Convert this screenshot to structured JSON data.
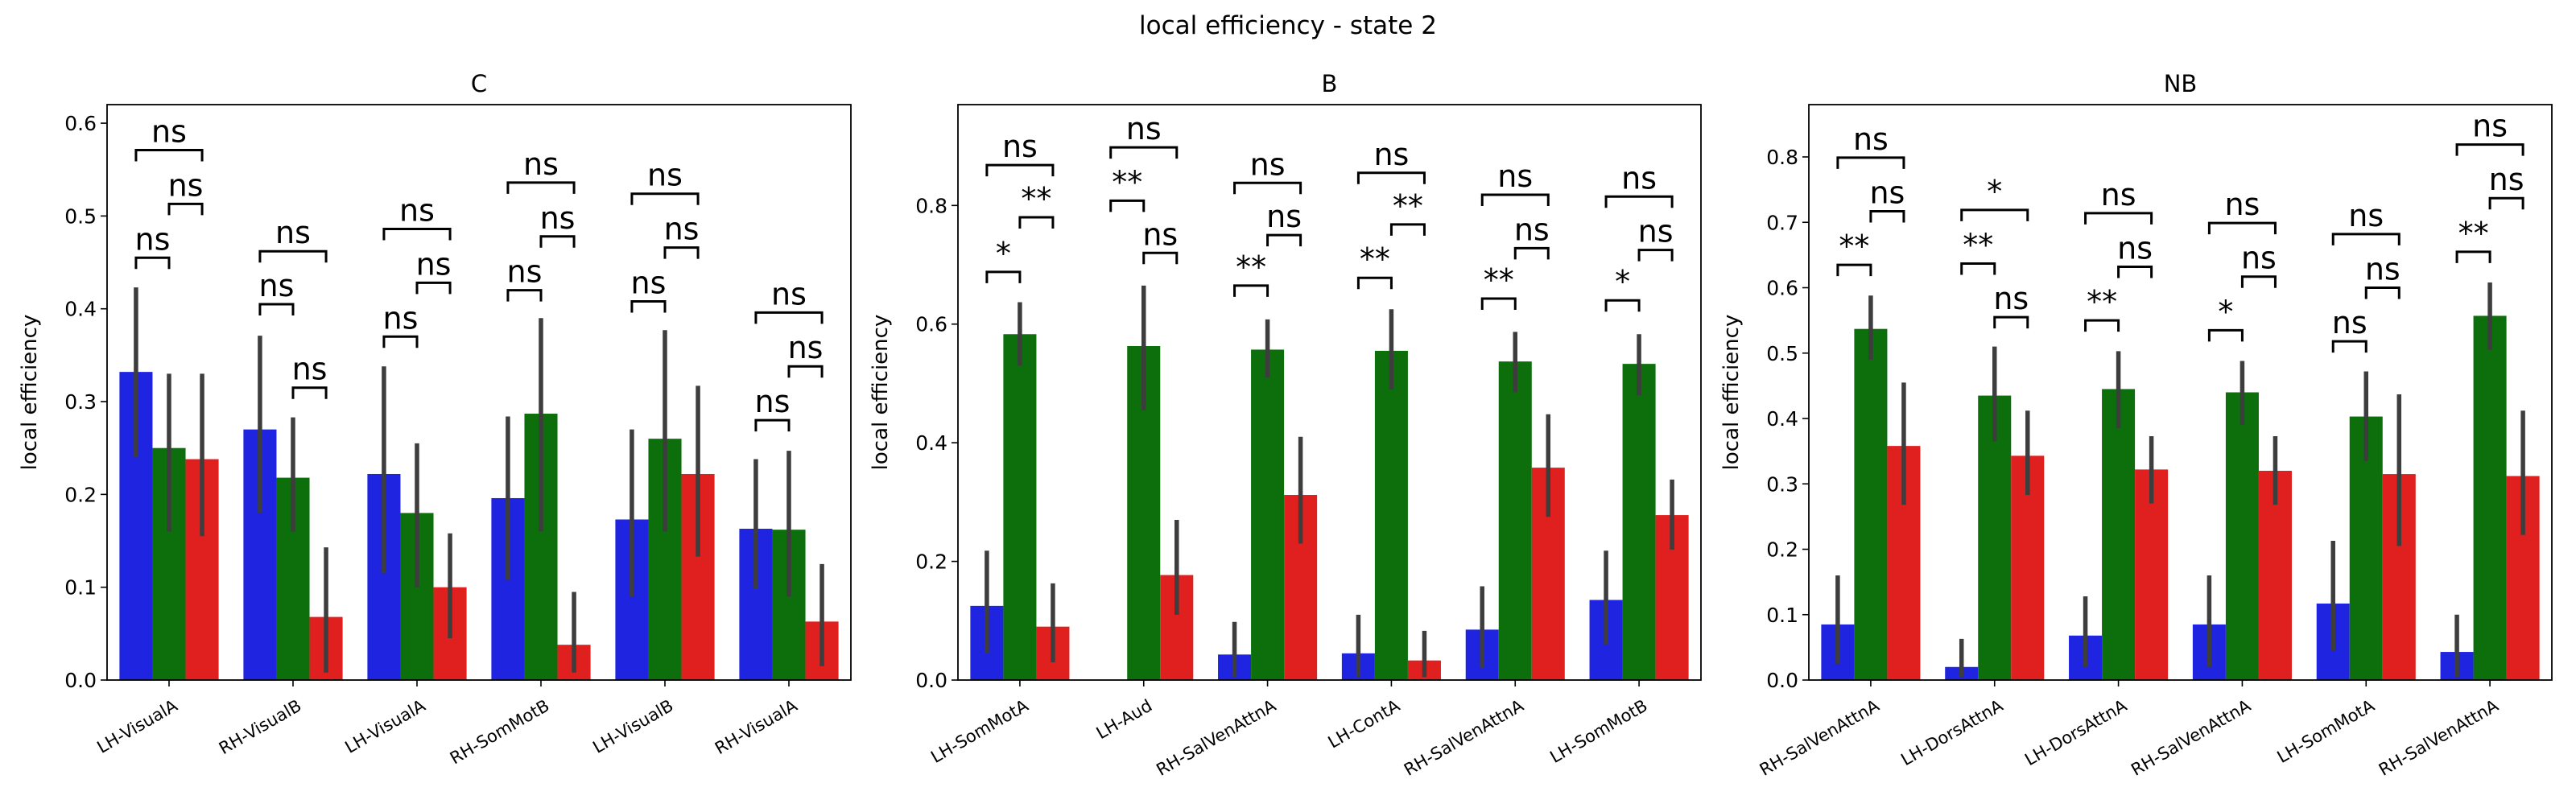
{
  "figure": {
    "title": "local efficiency - state 2"
  },
  "colors": {
    "series": [
      "#1f24e0",
      "#0c6f0c",
      "#e0201e"
    ],
    "err": "#3d3d3d"
  },
  "chart_data": [
    {
      "type": "bar",
      "title": "C",
      "ylabel": "local efficiency",
      "xlabel": "",
      "ylim": [
        0,
        0.62
      ],
      "yticks": [
        0.0,
        0.1,
        0.2,
        0.3,
        0.4,
        0.5,
        0.6
      ],
      "ytick_labels": [
        "0.0",
        "0.1",
        "0.2",
        "0.3",
        "0.4",
        "0.5",
        "0.6"
      ],
      "grid": false,
      "categories": [
        "LH-VisualA",
        "RH-VisualB",
        "LH-VisualA",
        "RH-SomMotB",
        "LH-VisualB",
        "RH-VisualA"
      ],
      "series": [
        {
          "values": [
            0.332,
            0.27,
            0.222,
            0.196,
            0.173,
            0.163
          ],
          "ci_low": [
            0.24,
            0.18,
            0.115,
            0.108,
            0.09,
            0.098
          ],
          "ci_high": [
            0.423,
            0.371,
            0.338,
            0.284,
            0.27,
            0.238
          ]
        },
        {
          "values": [
            0.25,
            0.218,
            0.18,
            0.287,
            0.26,
            0.162
          ],
          "ci_low": [
            0.16,
            0.16,
            0.1,
            0.16,
            0.16,
            0.09
          ],
          "ci_high": [
            0.33,
            0.283,
            0.255,
            0.39,
            0.377,
            0.247
          ]
        },
        {
          "values": [
            0.238,
            0.068,
            0.1,
            0.038,
            0.222,
            0.063
          ],
          "ci_low": [
            0.155,
            0.008,
            0.045,
            0.008,
            0.133,
            0.015
          ],
          "ci_high": [
            0.33,
            0.143,
            0.158,
            0.095,
            0.317,
            0.125
          ]
        }
      ],
      "annotations": [
        [
          {
            "from": 0,
            "to": 1,
            "y": 0.455,
            "label": "ns"
          },
          {
            "from": 1,
            "to": 2,
            "y": 0.513,
            "label": "ns"
          },
          {
            "from": 0,
            "to": 2,
            "y": 0.571,
            "label": "ns"
          }
        ],
        [
          {
            "from": 0,
            "to": 1,
            "y": 0.405,
            "label": "ns"
          },
          {
            "from": 1,
            "to": 2,
            "y": 0.315,
            "label": "ns"
          },
          {
            "from": 0,
            "to": 2,
            "y": 0.462,
            "label": "ns"
          }
        ],
        [
          {
            "from": 0,
            "to": 1,
            "y": 0.37,
            "label": "ns"
          },
          {
            "from": 1,
            "to": 2,
            "y": 0.428,
            "label": "ns"
          },
          {
            "from": 0,
            "to": 2,
            "y": 0.486,
            "label": "ns"
          }
        ],
        [
          {
            "from": 0,
            "to": 1,
            "y": 0.42,
            "label": "ns"
          },
          {
            "from": 1,
            "to": 2,
            "y": 0.478,
            "label": "ns"
          },
          {
            "from": 0,
            "to": 2,
            "y": 0.536,
            "label": "ns"
          }
        ],
        [
          {
            "from": 0,
            "to": 1,
            "y": 0.408,
            "label": "ns"
          },
          {
            "from": 1,
            "to": 2,
            "y": 0.466,
            "label": "ns"
          },
          {
            "from": 0,
            "to": 2,
            "y": 0.524,
            "label": "ns"
          }
        ],
        [
          {
            "from": 0,
            "to": 1,
            "y": 0.28,
            "label": "ns"
          },
          {
            "from": 1,
            "to": 2,
            "y": 0.338,
            "label": "ns"
          },
          {
            "from": 0,
            "to": 2,
            "y": 0.396,
            "label": "ns"
          }
        ]
      ]
    },
    {
      "type": "bar",
      "title": "B",
      "ylabel": "local efficiency",
      "xlabel": "",
      "ylim": [
        0,
        0.97
      ],
      "yticks": [
        0.0,
        0.2,
        0.4,
        0.6,
        0.8
      ],
      "ytick_labels": [
        "0.0",
        "0.2",
        "0.4",
        "0.6",
        "0.8"
      ],
      "grid": false,
      "categories": [
        "LH-SomMotA",
        "LH-Aud",
        "RH-SalVenAttnA",
        "LH-ContA",
        "RH-SalVenAttnA",
        "LH-SomMotB"
      ],
      "series": [
        {
          "values": [
            0.125,
            0.0,
            0.043,
            0.045,
            0.085,
            0.135
          ],
          "ci_low": [
            0.045,
            0.0,
            0.005,
            0.005,
            0.02,
            0.06
          ],
          "ci_high": [
            0.218,
            0.0,
            0.098,
            0.11,
            0.158,
            0.218
          ]
        },
        {
          "values": [
            0.583,
            0.563,
            0.557,
            0.555,
            0.537,
            0.533
          ],
          "ci_low": [
            0.53,
            0.455,
            0.51,
            0.49,
            0.485,
            0.48
          ],
          "ci_high": [
            0.637,
            0.665,
            0.608,
            0.625,
            0.587,
            0.583
          ]
        },
        {
          "values": [
            0.09,
            0.177,
            0.312,
            0.033,
            0.358,
            0.278
          ],
          "ci_low": [
            0.03,
            0.11,
            0.23,
            0.005,
            0.275,
            0.22
          ],
          "ci_high": [
            0.163,
            0.27,
            0.41,
            0.083,
            0.448,
            0.338
          ]
        }
      ],
      "annotations": [
        [
          {
            "from": 0,
            "to": 1,
            "y": 0.688,
            "label": "*"
          },
          {
            "from": 1,
            "to": 2,
            "y": 0.78,
            "label": "**"
          },
          {
            "from": 0,
            "to": 2,
            "y": 0.868,
            "label": "ns"
          }
        ],
        [
          {
            "from": 0,
            "to": 1,
            "y": 0.808,
            "label": "**"
          },
          {
            "from": 1,
            "to": 2,
            "y": 0.72,
            "label": "ns"
          },
          {
            "from": 0,
            "to": 2,
            "y": 0.898,
            "label": "ns"
          }
        ],
        [
          {
            "from": 0,
            "to": 1,
            "y": 0.665,
            "label": "**"
          },
          {
            "from": 1,
            "to": 2,
            "y": 0.75,
            "label": "ns"
          },
          {
            "from": 0,
            "to": 2,
            "y": 0.838,
            "label": "ns"
          }
        ],
        [
          {
            "from": 0,
            "to": 1,
            "y": 0.678,
            "label": "**"
          },
          {
            "from": 1,
            "to": 2,
            "y": 0.768,
            "label": "**"
          },
          {
            "from": 0,
            "to": 2,
            "y": 0.855,
            "label": "ns"
          }
        ],
        [
          {
            "from": 0,
            "to": 1,
            "y": 0.643,
            "label": "**"
          },
          {
            "from": 1,
            "to": 2,
            "y": 0.728,
            "label": "ns"
          },
          {
            "from": 0,
            "to": 2,
            "y": 0.818,
            "label": "ns"
          }
        ],
        [
          {
            "from": 0,
            "to": 1,
            "y": 0.64,
            "label": "*"
          },
          {
            "from": 1,
            "to": 2,
            "y": 0.725,
            "label": "ns"
          },
          {
            "from": 0,
            "to": 2,
            "y": 0.815,
            "label": "ns"
          }
        ]
      ]
    },
    {
      "type": "bar",
      "title": "NB",
      "ylabel": "local efficiency",
      "xlabel": "",
      "ylim": [
        0,
        0.88
      ],
      "yticks": [
        0.0,
        0.1,
        0.2,
        0.3,
        0.4,
        0.5,
        0.6,
        0.7,
        0.8
      ],
      "ytick_labels": [
        "0.0",
        "0.1",
        "0.2",
        "0.3",
        "0.4",
        "0.5",
        "0.6",
        "0.7",
        "0.8"
      ],
      "grid": false,
      "categories": [
        "RH-SalVenAttnA",
        "LH-DorsAttnA",
        "LH-DorsAttnA",
        "RH-SalVenAttnA",
        "LH-SomMotA",
        "RH-SalVenAttnA"
      ],
      "series": [
        {
          "values": [
            0.085,
            0.02,
            0.068,
            0.085,
            0.117,
            0.043
          ],
          "ci_low": [
            0.025,
            0.005,
            0.02,
            0.02,
            0.045,
            0.005
          ],
          "ci_high": [
            0.16,
            0.063,
            0.128,
            0.16,
            0.213,
            0.1
          ]
        },
        {
          "values": [
            0.537,
            0.435,
            0.445,
            0.44,
            0.403,
            0.557
          ],
          "ci_low": [
            0.49,
            0.365,
            0.385,
            0.39,
            0.335,
            0.505
          ],
          "ci_high": [
            0.588,
            0.51,
            0.503,
            0.488,
            0.472,
            0.608
          ]
        },
        {
          "values": [
            0.358,
            0.343,
            0.322,
            0.32,
            0.315,
            0.312
          ],
          "ci_low": [
            0.268,
            0.283,
            0.27,
            0.268,
            0.205,
            0.222
          ],
          "ci_high": [
            0.455,
            0.412,
            0.373,
            0.373,
            0.437,
            0.412
          ]
        }
      ],
      "annotations": [
        [
          {
            "from": 0,
            "to": 1,
            "y": 0.635,
            "label": "**"
          },
          {
            "from": 1,
            "to": 2,
            "y": 0.717,
            "label": "ns"
          },
          {
            "from": 0,
            "to": 2,
            "y": 0.799,
            "label": "ns"
          }
        ],
        [
          {
            "from": 0,
            "to": 1,
            "y": 0.637,
            "label": "**"
          },
          {
            "from": 1,
            "to": 2,
            "y": 0.555,
            "label": "ns"
          },
          {
            "from": 0,
            "to": 2,
            "y": 0.719,
            "label": "*"
          }
        ],
        [
          {
            "from": 0,
            "to": 1,
            "y": 0.55,
            "label": "**"
          },
          {
            "from": 1,
            "to": 2,
            "y": 0.632,
            "label": "ns"
          },
          {
            "from": 0,
            "to": 2,
            "y": 0.714,
            "label": "ns"
          }
        ],
        [
          {
            "from": 0,
            "to": 1,
            "y": 0.535,
            "label": "*"
          },
          {
            "from": 1,
            "to": 2,
            "y": 0.617,
            "label": "ns"
          },
          {
            "from": 0,
            "to": 2,
            "y": 0.699,
            "label": "ns"
          }
        ],
        [
          {
            "from": 0,
            "to": 1,
            "y": 0.518,
            "label": "ns"
          },
          {
            "from": 1,
            "to": 2,
            "y": 0.6,
            "label": "ns"
          },
          {
            "from": 0,
            "to": 2,
            "y": 0.682,
            "label": "ns"
          }
        ],
        [
          {
            "from": 0,
            "to": 1,
            "y": 0.655,
            "label": "**"
          },
          {
            "from": 1,
            "to": 2,
            "y": 0.737,
            "label": "ns"
          },
          {
            "from": 0,
            "to": 2,
            "y": 0.819,
            "label": "ns"
          }
        ]
      ]
    }
  ]
}
